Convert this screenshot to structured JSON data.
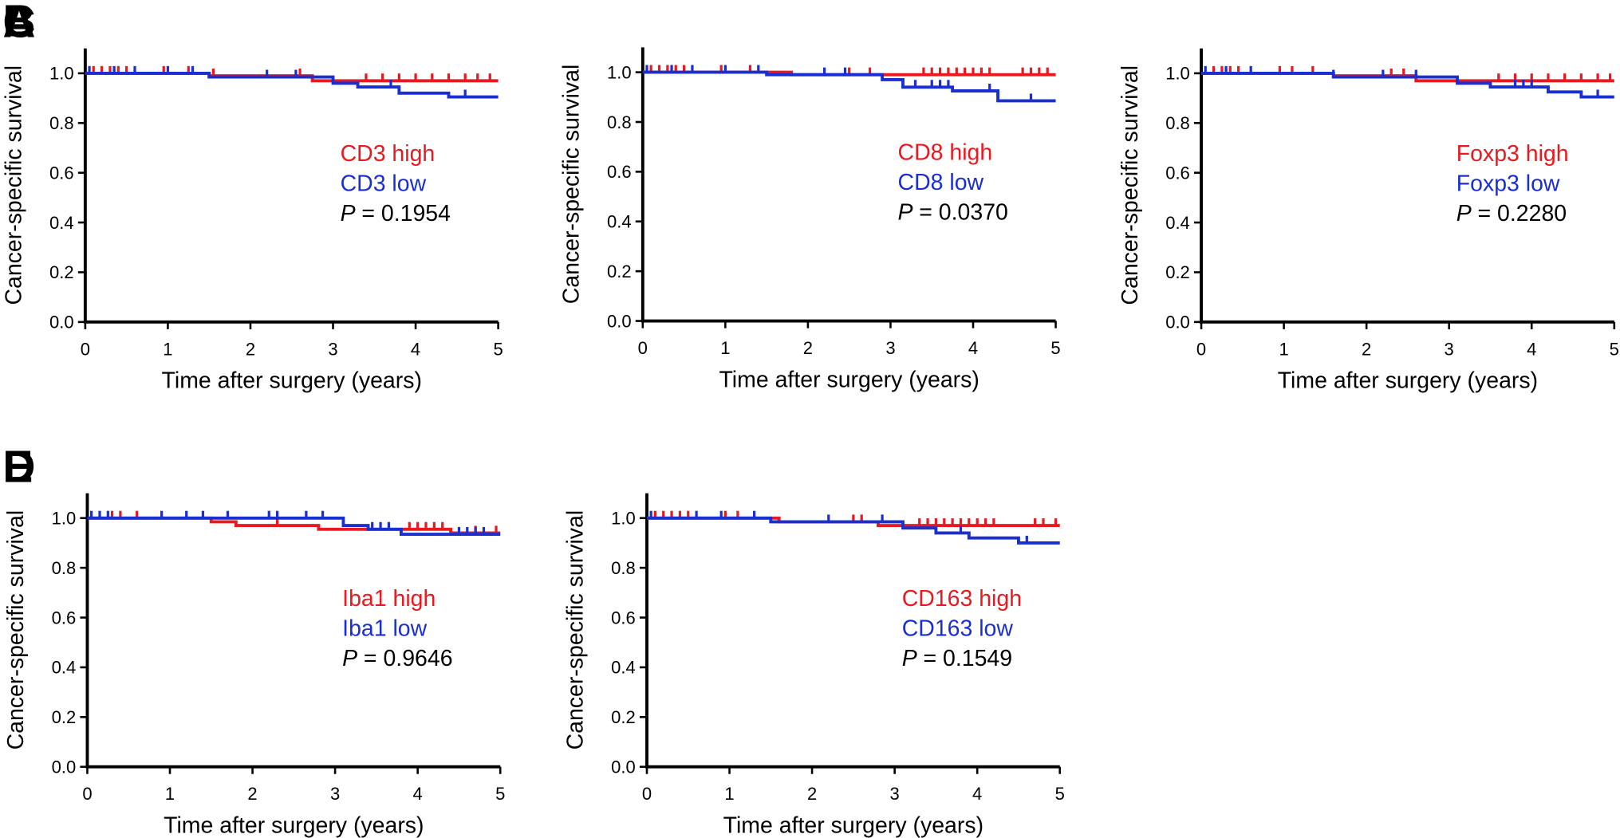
{
  "chart_data": [
    {
      "type": "line",
      "panel": "A",
      "xlabel": "Time after surgery (years)",
      "ylabel": "Cancer-specific survival",
      "xlim": [
        0,
        5
      ],
      "xticks": [
        0,
        1,
        2,
        3,
        4,
        5
      ],
      "ylim": [
        0,
        1.1
      ],
      "yticks": [
        {
          "value": 0,
          "label": "0.0"
        },
        0.2,
        0.4,
        0.6,
        0.8,
        {
          "value": 1,
          "label": "1.0"
        }
      ],
      "p_symbol": "P",
      "p_text": "= 0.1954",
      "series": [
        {
          "name": "CD3 high",
          "color": "#e8191f",
          "x": [
            0,
            1.5,
            2.75,
            5
          ],
          "values": [
            1,
            0.99,
            0.97,
            0.97
          ],
          "censored": [
            0.1,
            0.2,
            0.3,
            0.4,
            0.5,
            0.95,
            1.25,
            1.55,
            2.6,
            3.4,
            3.6,
            3.8,
            4.0,
            4.2,
            4.4,
            4.6,
            4.75,
            4.9
          ]
        },
        {
          "name": "CD3 low",
          "color": "#1a2fd1",
          "x": [
            0,
            1.5,
            3.0,
            3.3,
            3.8,
            4.4,
            5
          ],
          "values": [
            1,
            0.985,
            0.96,
            0.945,
            0.92,
            0.905,
            0.905
          ],
          "censored": [
            0.05,
            0.35,
            0.6,
            1.0,
            1.3,
            2.2,
            2.55,
            3.7,
            4.6
          ]
        }
      ]
    },
    {
      "type": "line",
      "panel": "B",
      "xlabel": "Time after surgery (years)",
      "ylabel": "Cancer-specific survival",
      "xlim": [
        0,
        5
      ],
      "xticks": [
        0,
        1,
        2,
        3,
        4,
        5
      ],
      "ylim": [
        0,
        1.1
      ],
      "yticks": [
        {
          "value": 0,
          "label": "0.0"
        },
        0.2,
        0.4,
        0.6,
        0.8,
        {
          "value": 1,
          "label": "1.0"
        }
      ],
      "p_symbol": "P",
      "p_text": "= 0.0370",
      "series": [
        {
          "name": "CD8 high",
          "color": "#e8191f",
          "x": [
            0,
            1.8,
            5
          ],
          "values": [
            1,
            0.99,
            0.99
          ],
          "censored": [
            0.1,
            0.2,
            0.3,
            0.4,
            0.5,
            0.95,
            1.3,
            2.5,
            2.75,
            3.4,
            3.5,
            3.6,
            3.7,
            3.8,
            3.9,
            4.0,
            4.1,
            4.2,
            4.6,
            4.7,
            4.8,
            4.9
          ]
        },
        {
          "name": "CD8 low",
          "color": "#1a2fd1",
          "x": [
            0,
            1.5,
            2.9,
            3.15,
            3.75,
            4.3,
            5
          ],
          "values": [
            1,
            0.99,
            0.97,
            0.94,
            0.925,
            0.885,
            0.885
          ],
          "censored": [
            0.05,
            0.35,
            0.6,
            1.0,
            1.4,
            2.2,
            2.45,
            3.3,
            3.5,
            3.6,
            3.7,
            4.2,
            4.7
          ]
        }
      ]
    },
    {
      "type": "line",
      "panel": "C",
      "xlabel": "Time after surgery (years)",
      "ylabel": "Cancer-specific survival",
      "xlim": [
        0,
        5
      ],
      "xticks": [
        0,
        1,
        2,
        3,
        4,
        5
      ],
      "ylim": [
        0,
        1.1
      ],
      "yticks": [
        {
          "value": 0,
          "label": "0.0"
        },
        0.2,
        0.4,
        0.6,
        0.8,
        {
          "value": 1,
          "label": "1.0"
        }
      ],
      "p_symbol": "P",
      "p_text": "= 0.2280",
      "series": [
        {
          "name": "Foxp3 high",
          "color": "#e8191f",
          "x": [
            0,
            1.6,
            2.6,
            5
          ],
          "values": [
            1,
            0.99,
            0.97,
            0.97
          ],
          "censored": [
            0.15,
            0.25,
            0.35,
            0.45,
            0.95,
            1.1,
            1.35,
            2.3,
            2.45,
            3.6,
            3.8,
            4.0,
            4.2,
            4.4,
            4.6,
            4.8,
            4.95
          ]
        },
        {
          "name": "Foxp3 low",
          "color": "#1a2fd1",
          "x": [
            0,
            1.6,
            3.1,
            3.5,
            4.2,
            4.6,
            5
          ],
          "values": [
            1,
            0.985,
            0.96,
            0.945,
            0.925,
            0.905,
            0.905
          ],
          "censored": [
            0.05,
            0.3,
            0.6,
            1.6,
            2.2,
            2.6,
            3.8,
            3.9,
            4.0,
            4.8
          ]
        }
      ]
    },
    {
      "type": "line",
      "panel": "D",
      "xlabel": "Time after surgery (years)",
      "ylabel": "Cancer-specific survival",
      "xlim": [
        0,
        5
      ],
      "xticks": [
        0,
        1,
        2,
        3,
        4,
        5
      ],
      "ylim": [
        0,
        1.1
      ],
      "yticks": [
        {
          "value": 0,
          "label": "0.0"
        },
        0.2,
        0.4,
        0.6,
        0.8,
        {
          "value": 1,
          "label": "1.0"
        }
      ],
      "p_symbol": "P",
      "p_text": "= 0.9646",
      "series": [
        {
          "name": "Iba1 high",
          "color": "#e8191f",
          "x": [
            0,
            1.5,
            1.8,
            2.8,
            4.4,
            5
          ],
          "values": [
            1,
            0.985,
            0.97,
            0.955,
            0.94,
            0.94
          ],
          "censored": [
            0.3,
            0.4,
            0.6,
            2.3,
            3.9,
            4.0,
            4.1,
            4.2,
            4.3,
            4.7,
            4.95
          ]
        },
        {
          "name": "Iba1 low",
          "color": "#1a2fd1",
          "x": [
            0,
            3.1,
            3.4,
            3.8,
            5
          ],
          "values": [
            1,
            0.97,
            0.955,
            0.935,
            0.935
          ],
          "censored": [
            0.05,
            0.15,
            0.25,
            0.9,
            1.2,
            1.4,
            1.7,
            2.2,
            2.3,
            2.65,
            2.85,
            3.45,
            3.55,
            3.65,
            4.5,
            4.6,
            4.7,
            4.8
          ]
        }
      ]
    },
    {
      "type": "line",
      "panel": "E",
      "xlabel": "Time after surgery (years)",
      "ylabel": "Cancer-specific survival",
      "xlim": [
        0,
        5
      ],
      "xticks": [
        0,
        1,
        2,
        3,
        4,
        5
      ],
      "ylim": [
        0,
        1.1
      ],
      "yticks": [
        {
          "value": 0,
          "label": "0.0"
        },
        0.2,
        0.4,
        0.6,
        0.8,
        {
          "value": 1,
          "label": "1.0"
        }
      ],
      "p_symbol": "P",
      "p_text": "= 0.1549",
      "series": [
        {
          "name": "CD163 high",
          "color": "#e8191f",
          "x": [
            0,
            1.6,
            2.8,
            5
          ],
          "values": [
            1,
            0.985,
            0.97,
            0.97
          ],
          "censored": [
            0.1,
            0.2,
            0.3,
            0.4,
            0.5,
            0.95,
            1.1,
            2.5,
            2.6,
            3.3,
            3.4,
            3.5,
            3.6,
            3.7,
            3.8,
            3.9,
            4.0,
            4.1,
            4.2,
            4.7,
            4.8,
            4.95
          ]
        },
        {
          "name": "CD163 low",
          "color": "#1a2fd1",
          "x": [
            0,
            1.5,
            3.1,
            3.5,
            3.9,
            4.5,
            5
          ],
          "values": [
            1,
            0.985,
            0.96,
            0.94,
            0.92,
            0.9,
            0.9
          ],
          "censored": [
            0.05,
            0.6,
            0.9,
            1.3,
            2.2,
            2.85,
            3.8,
            4.6
          ]
        }
      ]
    }
  ]
}
